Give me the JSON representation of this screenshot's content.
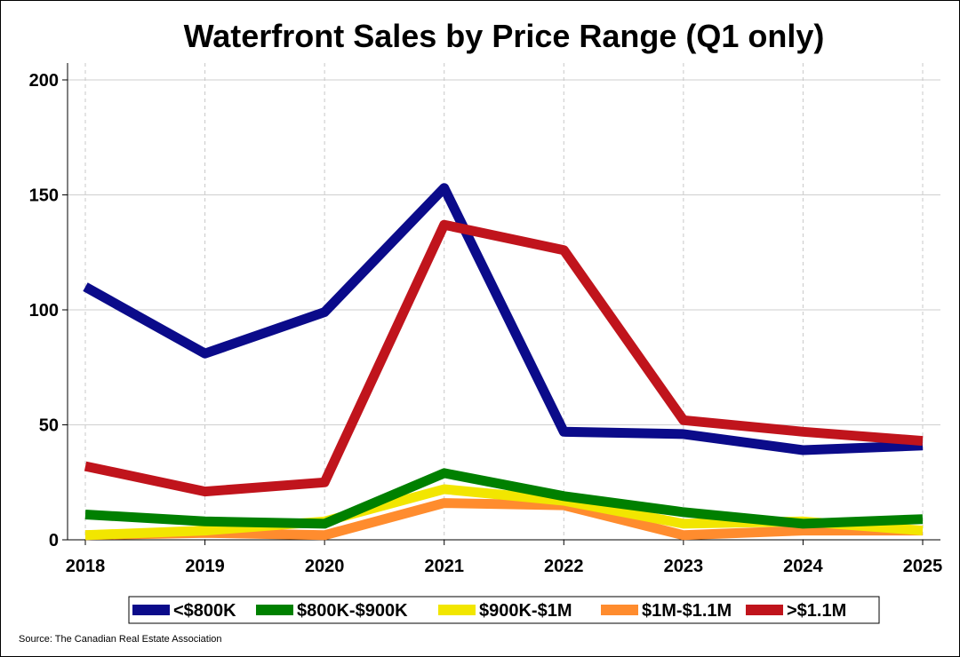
{
  "chart_data": {
    "type": "line",
    "title": "Waterfront Sales by Price Range (Q1 only)",
    "xlabel": "",
    "ylabel": "",
    "x": [
      "2018",
      "2019",
      "2020",
      "2021",
      "2022",
      "2023",
      "2024",
      "2025"
    ],
    "ylim": [
      0,
      200
    ],
    "yticks": [
      0,
      50,
      100,
      150,
      200
    ],
    "series": [
      {
        "name": "<$800K",
        "color": "#0b0b8a",
        "values": [
          110,
          81,
          99,
          153,
          47,
          46,
          39,
          41
        ]
      },
      {
        "name": "$800K-$900K",
        "color": "#008000",
        "values": [
          11,
          8,
          7,
          29,
          19,
          12,
          7,
          9
        ]
      },
      {
        "name": "$900K-$1M",
        "color": "#f2e600",
        "values": [
          2,
          4,
          8,
          22,
          17,
          7,
          8,
          4
        ]
      },
      {
        "name": "$1M-$1.1M",
        "color": "#ff8c2e",
        "values": [
          2,
          3,
          2,
          16,
          15,
          2,
          4,
          4
        ]
      },
      {
        "name": ">$1.1M",
        "color": "#c0141c",
        "values": [
          32,
          21,
          25,
          137,
          126,
          52,
          47,
          43
        ]
      }
    ],
    "grid": true,
    "legend": "bottom",
    "source": "Source: The Canadian Real Estate Association"
  }
}
